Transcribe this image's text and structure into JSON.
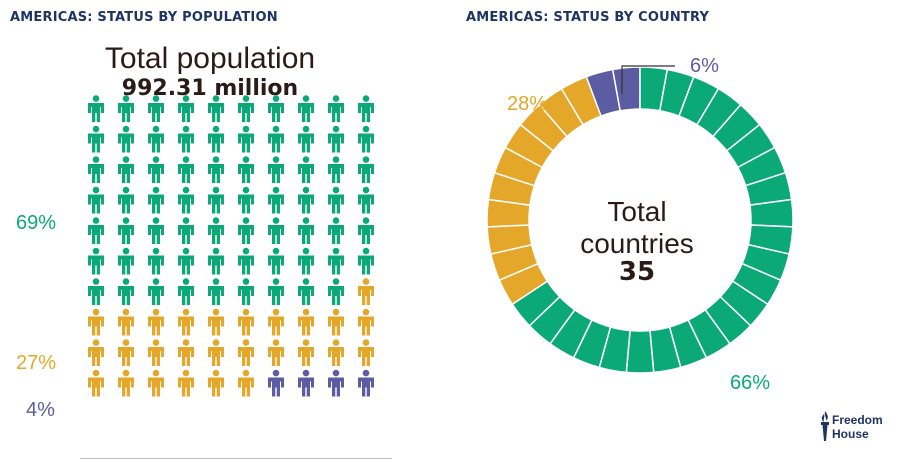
{
  "left_panel": {
    "title": "AMERICAS: STATUS BY POPULATION",
    "total_label": "Total population",
    "total_value": "992.31 million"
  },
  "right_panel": {
    "title": "AMERICAS: STATUS BY COUNTRY",
    "center_line1": "Total",
    "center_line2": "countries",
    "center_value": "35"
  },
  "logo": {
    "line1": "Freedom",
    "line2": "House"
  },
  "chart_data": [
    {
      "type": "icon-array",
      "title": "AMERICAS: STATUS BY POPULATION",
      "total_icons": 100,
      "series": [
        {
          "value": 69,
          "label": "69%",
          "count": 69,
          "color": "#0ca978"
        },
        {
          "value": 27,
          "label": "27%",
          "count": 27,
          "color": "#e5a72a"
        },
        {
          "value": 4,
          "label": "4%",
          "count": 4,
          "color": "#5c5ca3"
        }
      ]
    },
    {
      "type": "pie",
      "donut": true,
      "title": "AMERICAS: STATUS BY COUNTRY",
      "total": 35,
      "series": [
        {
          "value": 23,
          "label": "66%",
          "color": "#0ca978"
        },
        {
          "value": 10,
          "label": "28%",
          "color": "#e5a72a"
        },
        {
          "value": 2,
          "label": "6%",
          "color": "#5c5ca3"
        }
      ]
    }
  ]
}
